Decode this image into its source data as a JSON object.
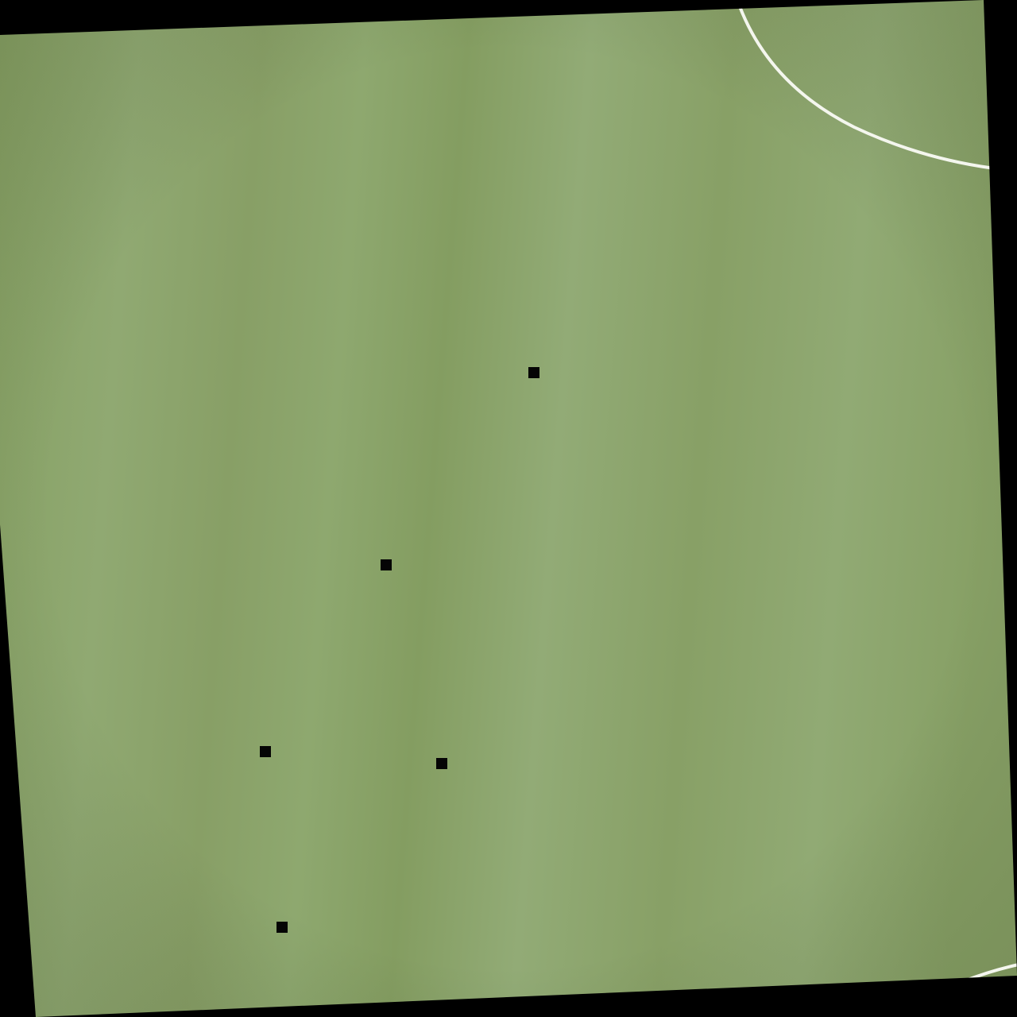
{
  "scene": {
    "subject": "grass-field-with-line-markings",
    "colors": {
      "background": "#000000",
      "grass_base": "#8aa369",
      "grass_light": "#93ac75",
      "grass_dark": "#7f9a5e",
      "line": "#f4f6ee",
      "marker": "#050505"
    },
    "marker_count": 5
  }
}
